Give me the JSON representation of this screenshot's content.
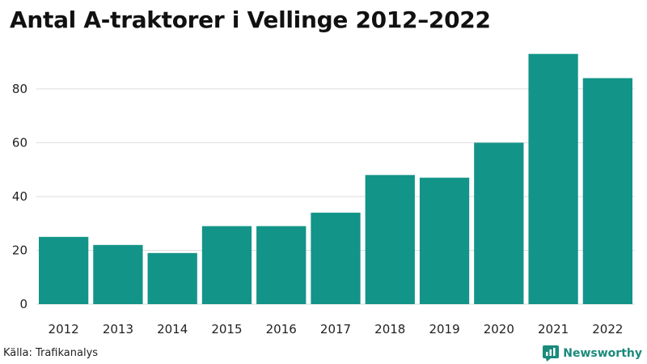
{
  "chart_data": {
    "type": "bar",
    "title": "Antal A-traktorer i Vellinge 2012–2022",
    "xlabel": "",
    "ylabel": "",
    "categories": [
      "2012",
      "2013",
      "2014",
      "2015",
      "2016",
      "2017",
      "2018",
      "2019",
      "2020",
      "2021",
      "2022"
    ],
    "values": [
      25,
      22,
      19,
      29,
      29,
      34,
      48,
      47,
      60,
      93,
      84
    ],
    "ylim": [
      0,
      95
    ],
    "yticks": [
      0,
      20,
      40,
      60,
      80
    ],
    "grid": true,
    "legend": "none",
    "bar_color": "#139488",
    "grid_color": "#dddddd"
  },
  "footer": {
    "source": "Källa: Trafikanalys",
    "brand": "Newsworthy",
    "brand_icon": "newsworthy-logo-icon",
    "brand_color": "#1a8a7c"
  }
}
